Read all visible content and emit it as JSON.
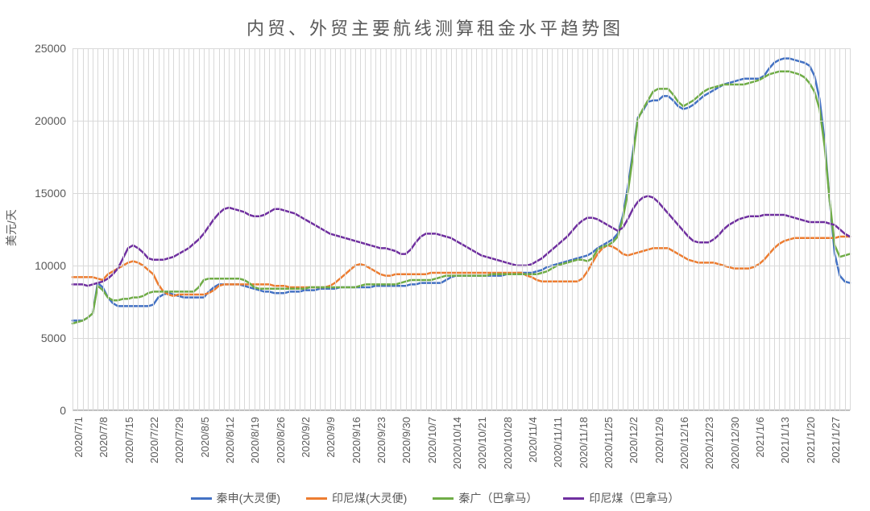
{
  "chart": {
    "title": "内贸、外贸主要航线测算租金水平趋势图",
    "title_fontsize": 22,
    "title_color": "#595959",
    "y_axis_label": "美元/天",
    "y_axis_label_fontsize": 14,
    "background_color": "#ffffff",
    "grid_color": "#d9d9d9",
    "axis_color": "#a6a6a6",
    "tick_label_color": "#595959",
    "type": "line",
    "line_width": 2.5,
    "ylim": [
      0,
      25000
    ],
    "ytick_step": 5000,
    "y_ticks": [
      0,
      5000,
      10000,
      15000,
      20000,
      25000
    ],
    "x_labels": [
      "2020/7/1",
      "2020/7/8",
      "2020/7/15",
      "2020/7/22",
      "2020/7/29",
      "2020/8/5",
      "2020/8/12",
      "2020/8/19",
      "2020/8/26",
      "2020/9/2",
      "2020/9/9",
      "2020/9/16",
      "2020/9/23",
      "2020/9/30",
      "2020/10/7",
      "2020/10/14",
      "2020/10/21",
      "2020/10/28",
      "2020/11/4",
      "2020/11/11",
      "2020/11/18",
      "2020/11/25",
      "2020/12/2",
      "2020/12/9",
      "2020/12/16",
      "2020/12/23",
      "2020/12/30",
      "2021/1/6",
      "2021/1/13",
      "2021/1/20",
      "2021/1/27"
    ],
    "points_per_week": 5,
    "series": [
      {
        "name": "秦申(大灵便)",
        "color": "#4472c4",
        "data": [
          6200,
          6200,
          6200,
          6400,
          6700,
          8800,
          8500,
          7800,
          7400,
          7200,
          7200,
          7200,
          7200,
          7200,
          7200,
          7200,
          7300,
          7800,
          8000,
          8100,
          8000,
          7900,
          7800,
          7800,
          7800,
          7800,
          7800,
          8200,
          8500,
          8700,
          8700,
          8700,
          8700,
          8700,
          8600,
          8500,
          8400,
          8300,
          8200,
          8200,
          8100,
          8100,
          8100,
          8200,
          8200,
          8200,
          8300,
          8300,
          8300,
          8400,
          8400,
          8400,
          8400,
          8500,
          8500,
          8500,
          8500,
          8500,
          8500,
          8500,
          8600,
          8600,
          8600,
          8600,
          8600,
          8600,
          8600,
          8700,
          8700,
          8800,
          8800,
          8800,
          8800,
          8800,
          9000,
          9200,
          9300,
          9300,
          9300,
          9300,
          9300,
          9300,
          9300,
          9300,
          9300,
          9300,
          9400,
          9400,
          9500,
          9500,
          9500,
          9500,
          9600,
          9700,
          9900,
          10000,
          10100,
          10200,
          10300,
          10400,
          10500,
          10600,
          10700,
          10900,
          11200,
          11400,
          11600,
          11800,
          12200,
          13400,
          15400,
          17800,
          20200,
          20700,
          21300,
          21400,
          21400,
          21700,
          21700,
          21400,
          21000,
          20800,
          20900,
          21100,
          21400,
          21700,
          21900,
          22100,
          22300,
          22500,
          22600,
          22700,
          22800,
          22900,
          22900,
          22900,
          22900,
          23100,
          23600,
          24000,
          24200,
          24300,
          24300,
          24200,
          24100,
          24000,
          23800,
          23100,
          21500,
          18600,
          14500,
          10800,
          9300,
          8900,
          8800
        ]
      },
      {
        "name": "印尼煤(大灵便)",
        "color": "#ed7d31",
        "data": [
          9200,
          9200,
          9200,
          9200,
          9200,
          9100,
          9000,
          9400,
          9600,
          9800,
          10000,
          10200,
          10300,
          10200,
          10000,
          9700,
          9400,
          8700,
          8200,
          8000,
          7900,
          8000,
          8000,
          8000,
          8000,
          8000,
          8000,
          8100,
          8300,
          8600,
          8700,
          8700,
          8700,
          8700,
          8700,
          8700,
          8700,
          8700,
          8700,
          8700,
          8600,
          8600,
          8600,
          8500,
          8500,
          8500,
          8500,
          8500,
          8500,
          8500,
          8500,
          8600,
          8800,
          9100,
          9400,
          9700,
          10000,
          10100,
          10000,
          9800,
          9600,
          9400,
          9300,
          9300,
          9400,
          9400,
          9400,
          9400,
          9400,
          9400,
          9400,
          9500,
          9500,
          9500,
          9500,
          9500,
          9500,
          9500,
          9500,
          9500,
          9500,
          9500,
          9500,
          9500,
          9500,
          9500,
          9500,
          9500,
          9500,
          9500,
          9300,
          9200,
          9000,
          8900,
          8900,
          8900,
          8900,
          8900,
          8900,
          8900,
          8900,
          9100,
          9600,
          10200,
          10800,
          11200,
          11400,
          11300,
          11100,
          10800,
          10700,
          10800,
          10900,
          11000,
          11100,
          11200,
          11200,
          11200,
          11200,
          11000,
          10800,
          10600,
          10400,
          10300,
          10200,
          10200,
          10200,
          10200,
          10100,
          10000,
          9900,
          9800,
          9800,
          9800,
          9800,
          9900,
          10100,
          10400,
          10800,
          11200,
          11500,
          11700,
          11800,
          11900,
          11900,
          11900,
          11900,
          11900,
          11900,
          11900,
          11900,
          11900,
          12000,
          12000,
          12000
        ]
      },
      {
        "name": "秦广（巴拿马）",
        "color": "#70ad47",
        "data": [
          6000,
          6100,
          6200,
          6400,
          6700,
          8600,
          8300,
          7800,
          7600,
          7600,
          7700,
          7700,
          7800,
          7800,
          7900,
          8100,
          8200,
          8200,
          8200,
          8200,
          8200,
          8200,
          8200,
          8200,
          8200,
          8500,
          9000,
          9100,
          9100,
          9100,
          9100,
          9100,
          9100,
          9100,
          9000,
          8800,
          8500,
          8400,
          8400,
          8400,
          8400,
          8400,
          8400,
          8400,
          8400,
          8400,
          8400,
          8500,
          8500,
          8500,
          8500,
          8500,
          8500,
          8500,
          8500,
          8500,
          8500,
          8600,
          8700,
          8700,
          8700,
          8700,
          8700,
          8700,
          8700,
          8800,
          8900,
          9000,
          9000,
          9000,
          9000,
          9000,
          9100,
          9200,
          9300,
          9300,
          9300,
          9300,
          9300,
          9300,
          9300,
          9300,
          9300,
          9400,
          9400,
          9400,
          9400,
          9400,
          9400,
          9400,
          9400,
          9400,
          9400,
          9500,
          9600,
          9800,
          10000,
          10100,
          10200,
          10300,
          10400,
          10400,
          10300,
          10500,
          11100,
          11300,
          11400,
          11600,
          12000,
          13200,
          15000,
          17500,
          20100,
          20800,
          21400,
          22000,
          22200,
          22200,
          22200,
          21800,
          21300,
          21000,
          21200,
          21400,
          21700,
          22000,
          22200,
          22300,
          22400,
          22500,
          22500,
          22500,
          22500,
          22500,
          22600,
          22700,
          22800,
          23000,
          23200,
          23300,
          23400,
          23400,
          23400,
          23300,
          23200,
          23000,
          22600,
          22000,
          20800,
          18200,
          14500,
          11400,
          10600,
          10700,
          10800
        ]
      },
      {
        "name": "印尼煤（巴拿马）",
        "color": "#7030a0",
        "data": [
          8700,
          8700,
          8700,
          8600,
          8700,
          8800,
          8900,
          9100,
          9400,
          9800,
          10500,
          11200,
          11400,
          11200,
          10900,
          10500,
          10400,
          10400,
          10400,
          10500,
          10600,
          10800,
          11000,
          11200,
          11500,
          11800,
          12200,
          12700,
          13200,
          13600,
          13900,
          14000,
          13900,
          13800,
          13700,
          13500,
          13400,
          13400,
          13500,
          13700,
          13900,
          13900,
          13800,
          13700,
          13600,
          13400,
          13200,
          13000,
          12800,
          12600,
          12400,
          12200,
          12100,
          12000,
          11900,
          11800,
          11700,
          11600,
          11500,
          11400,
          11300,
          11200,
          11200,
          11100,
          11000,
          10800,
          10800,
          11100,
          11600,
          12000,
          12200,
          12200,
          12200,
          12100,
          12000,
          11900,
          11700,
          11500,
          11300,
          11100,
          10900,
          10700,
          10600,
          10500,
          10400,
          10300,
          10200,
          10100,
          10000,
          10000,
          10000,
          10100,
          10300,
          10500,
          10800,
          11100,
          11400,
          11700,
          12000,
          12400,
          12800,
          13100,
          13300,
          13300,
          13200,
          13000,
          12800,
          12600,
          12400,
          12600,
          13200,
          13900,
          14400,
          14700,
          14800,
          14700,
          14400,
          14000,
          13600,
          13200,
          12800,
          12400,
          12000,
          11700,
          11600,
          11600,
          11600,
          11800,
          12100,
          12500,
          12800,
          13000,
          13200,
          13300,
          13400,
          13400,
          13400,
          13500,
          13500,
          13500,
          13500,
          13500,
          13400,
          13300,
          13200,
          13100,
          13000,
          13000,
          13000,
          13000,
          12900,
          12800,
          12500,
          12200,
          12000
        ]
      }
    ]
  }
}
